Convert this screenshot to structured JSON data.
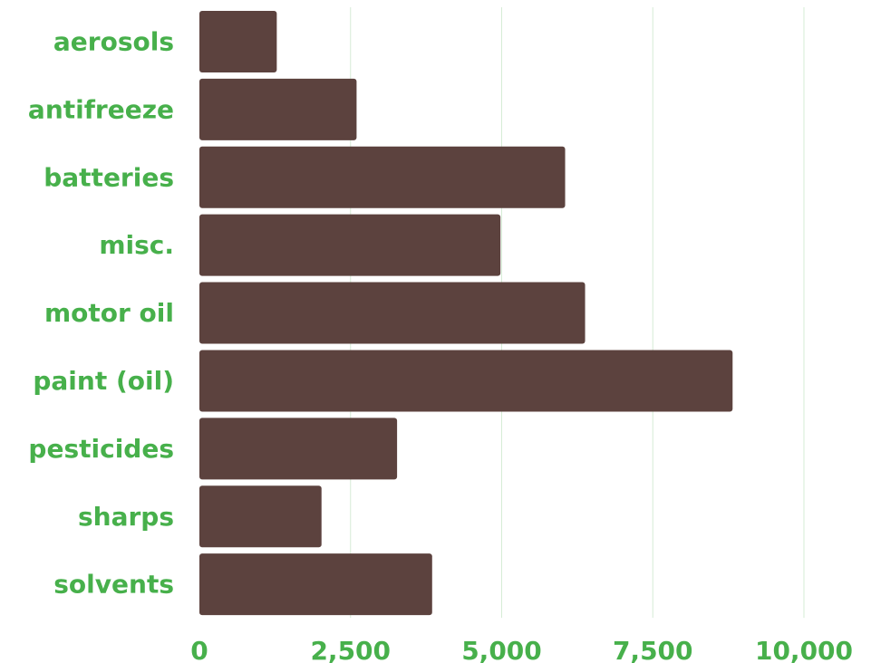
{
  "chart_data": {
    "type": "bar",
    "orientation": "horizontal",
    "categories": [
      "aerosols",
      "antifreeze",
      "batteries",
      "misc.",
      "motor oil",
      "paint (oil)",
      "pesticides",
      "sharps",
      "solvents"
    ],
    "values": [
      1280,
      2600,
      6050,
      4980,
      6380,
      8820,
      3270,
      2020,
      3850
    ],
    "xlim": [
      0,
      10000
    ],
    "xticks": [
      0,
      2500,
      5000,
      7500,
      10000
    ],
    "xtick_labels": [
      "0",
      "2,500",
      "5,000",
      "7,500",
      "10,000"
    ],
    "grid": "vertical",
    "title": "",
    "xlabel": "",
    "ylabel": "",
    "colors": {
      "bar": "#5c423e",
      "label": "#47b04b",
      "grid": "#d6ecd6"
    }
  }
}
